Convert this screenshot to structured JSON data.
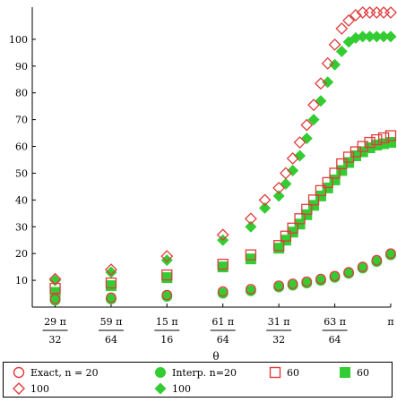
{
  "chart_data": {
    "type": "scatter",
    "xlabel": "θ",
    "ylabel": "",
    "xlim": [
      2.827,
      3.1416
    ],
    "ylim": [
      0,
      112
    ],
    "grid": false,
    "y_ticks": [
      10,
      20,
      30,
      40,
      50,
      60,
      70,
      80,
      90,
      100
    ],
    "x_ticks": [
      {
        "value": 2.8471,
        "num": "29 π",
        "den": "32"
      },
      {
        "value": 2.8962,
        "num": "59 π",
        "den": "64"
      },
      {
        "value": 2.9452,
        "num": "15 π",
        "den": "16"
      },
      {
        "value": 2.9943,
        "num": "61 π",
        "den": "64"
      },
      {
        "value": 3.0434,
        "num": "31 π",
        "den": "32"
      },
      {
        "value": 3.0925,
        "num": "63 π",
        "den": "64"
      },
      {
        "value": 3.1416,
        "num": "π",
        "den": ""
      }
    ],
    "legend_position": "bottom",
    "series": [
      {
        "name": "Exact, n = 20",
        "marker": "circle-open",
        "color": "#e03c3c",
        "x": [
          2.8471,
          2.8962,
          2.9452,
          2.9943,
          3.0188,
          3.0434,
          3.0556,
          3.0679,
          3.0802,
          3.0925,
          3.1047,
          3.117,
          3.1293,
          3.1416
        ],
        "y": [
          3.0,
          3.5,
          4.5,
          5.8,
          6.7,
          8.0,
          8.7,
          9.5,
          10.5,
          11.6,
          13.0,
          15.0,
          17.5,
          20.0
        ]
      },
      {
        "name": "Interp. n=20",
        "marker": "circle-filled",
        "color": "#33cc33",
        "x": [
          2.8471,
          2.8962,
          2.9452,
          2.9943,
          3.0188,
          3.0434,
          3.0556,
          3.0679,
          3.0802,
          3.0925,
          3.1047,
          3.117,
          3.1293,
          3.1416
        ],
        "y": [
          2.6,
          3.0,
          4.0,
          5.2,
          6.1,
          7.5,
          8.2,
          9.0,
          10.0,
          11.1,
          12.6,
          14.6,
          17.0,
          19.5
        ]
      },
      {
        "name": "60",
        "marker": "square-open",
        "color": "#e03c3c",
        "x": [
          2.8471,
          2.8962,
          2.9452,
          2.9943,
          3.0188,
          3.0434,
          3.0495,
          3.0556,
          3.0618,
          3.0679,
          3.074,
          3.0802,
          3.0863,
          3.0925,
          3.0986,
          3.1047,
          3.1109,
          3.117,
          3.1232,
          3.1293,
          3.1354,
          3.1416
        ],
        "y": [
          7.0,
          9.0,
          12.0,
          16.0,
          19.5,
          23.0,
          26.5,
          29.5,
          33.0,
          36.5,
          40.0,
          43.5,
          46.5,
          50.0,
          53.5,
          56.0,
          58.0,
          60.0,
          61.5,
          62.5,
          63.2,
          64.0
        ]
      },
      {
        "name": "60",
        "marker": "square-filled",
        "color": "#33cc33",
        "x": [
          2.8471,
          2.8962,
          2.9452,
          2.9943,
          3.0188,
          3.0434,
          3.0495,
          3.0556,
          3.0618,
          3.0679,
          3.074,
          3.0802,
          3.0863,
          3.0925,
          3.0986,
          3.1047,
          3.1109,
          3.117,
          3.1232,
          3.1293,
          3.1354,
          3.1416
        ],
        "y": [
          5.5,
          8.0,
          11.0,
          15.0,
          18.0,
          22.0,
          25.0,
          28.0,
          31.0,
          34.5,
          38.0,
          41.5,
          44.5,
          47.5,
          51.0,
          54.0,
          56.5,
          58.0,
          59.5,
          60.5,
          61.0,
          61.5
        ]
      },
      {
        "name": "100",
        "marker": "diamond-open",
        "color": "#e03c3c",
        "x": [
          2.8471,
          2.8962,
          2.9452,
          2.9943,
          3.0188,
          3.0311,
          3.0434,
          3.0495,
          3.0556,
          3.0618,
          3.0679,
          3.074,
          3.0802,
          3.0863,
          3.0925,
          3.0986,
          3.1047,
          3.1109,
          3.117,
          3.1232,
          3.1293,
          3.1354,
          3.1416
        ],
        "y": [
          10.5,
          14.0,
          19.0,
          27.0,
          33.0,
          40.0,
          44.5,
          50.0,
          55.5,
          61.5,
          68.0,
          75.5,
          83.5,
          91.0,
          98.0,
          104.0,
          107.0,
          109.0,
          110.0,
          110.0,
          110.0,
          110.0,
          110.0
        ]
      },
      {
        "name": "100",
        "marker": "diamond-filled",
        "color": "#33cc33",
        "x": [
          2.8471,
          2.8962,
          2.9452,
          2.9943,
          3.0188,
          3.0311,
          3.0434,
          3.0495,
          3.0556,
          3.0618,
          3.0679,
          3.074,
          3.0802,
          3.0863,
          3.0925,
          3.0986,
          3.1047,
          3.1109,
          3.117,
          3.1232,
          3.1293,
          3.1354,
          3.1416
        ],
        "y": [
          10.0,
          13.0,
          17.5,
          25.0,
          30.0,
          37.0,
          41.5,
          46.0,
          51.0,
          56.5,
          63.0,
          70.0,
          77.0,
          84.0,
          90.5,
          95.5,
          99.0,
          100.5,
          101.0,
          101.0,
          101.0,
          101.0,
          101.0
        ]
      }
    ]
  },
  "legend": {
    "items": [
      {
        "label": "Exact, n = 20",
        "marker": "circle-open",
        "color": "#e03c3c"
      },
      {
        "label": "Interp. n=20",
        "marker": "circle-filled",
        "color": "#33cc33"
      },
      {
        "label": "60",
        "marker": "square-open",
        "color": "#e03c3c"
      },
      {
        "label": "60",
        "marker": "square-filled",
        "color": "#33cc33"
      },
      {
        "label": "100",
        "marker": "diamond-open",
        "color": "#e03c3c"
      },
      {
        "label": "100",
        "marker": "diamond-filled",
        "color": "#33cc33"
      }
    ]
  }
}
